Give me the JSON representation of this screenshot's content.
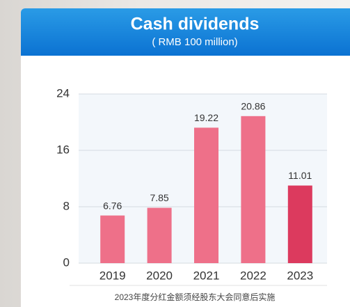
{
  "chart_data": {
    "type": "bar",
    "title": "Cash dividends",
    "subtitle": "( RMB 100 million)",
    "categories": [
      "2019",
      "2020",
      "2021",
      "2022",
      "2023"
    ],
    "values": [
      6.76,
      7.85,
      19.22,
      20.86,
      11.01
    ],
    "colors": [
      "#ee7089",
      "#ee7089",
      "#ee7089",
      "#ee7089",
      "#dc3a5e"
    ],
    "ylim": [
      0,
      24
    ],
    "yticks": [
      0,
      8,
      16,
      24
    ],
    "grid": true,
    "footnote": "2023年度分红金额须经股东大会同意后实施"
  }
}
